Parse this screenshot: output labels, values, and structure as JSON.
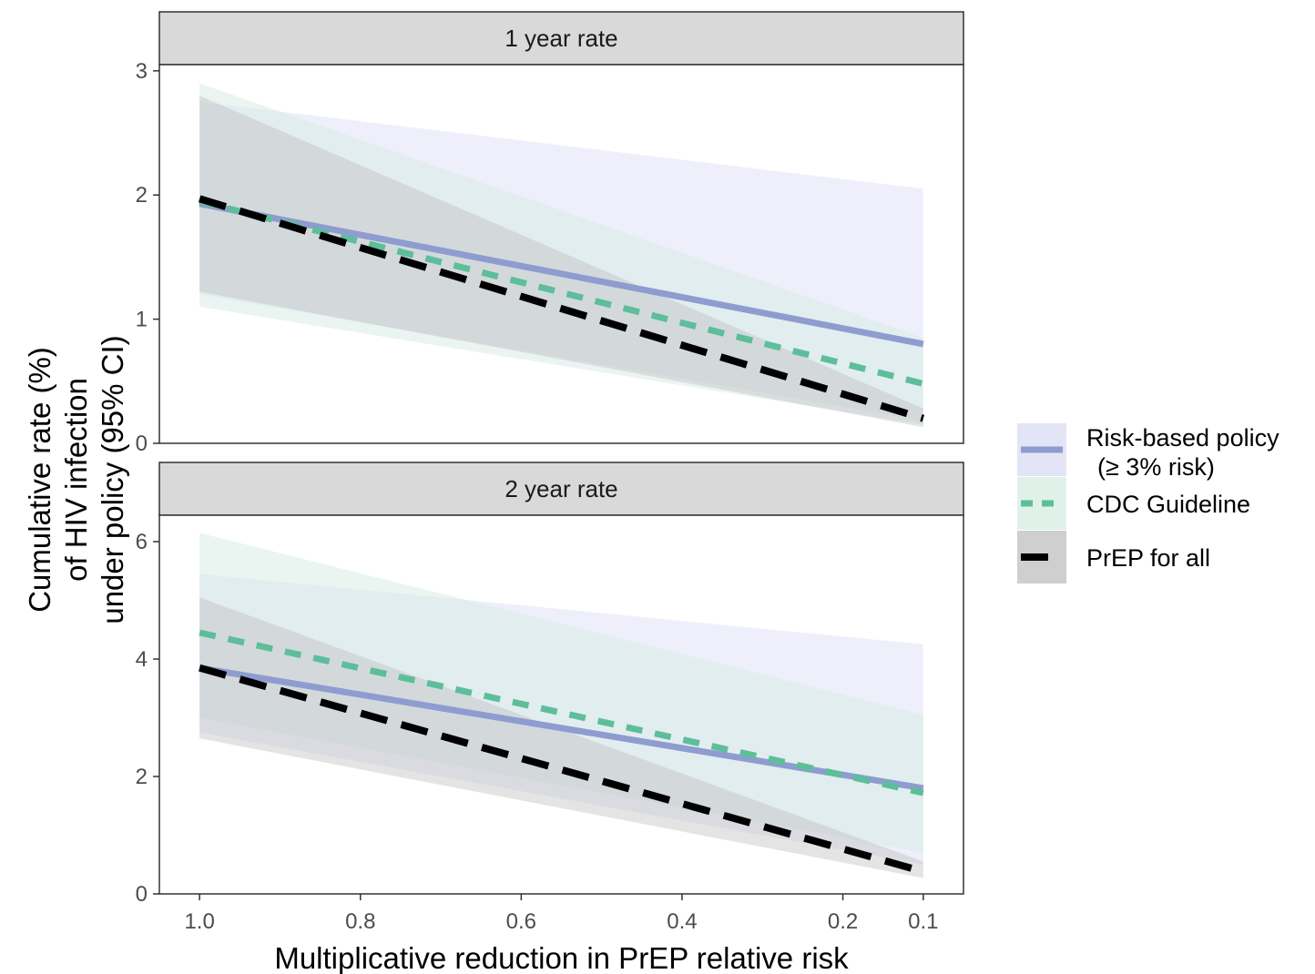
{
  "chart_data": {
    "type": "line",
    "xlabel": "Multiplicative reduction in PrEP relative risk",
    "ylabel_lines": [
      "Cumulative rate (%)",
      "of HIV infection",
      "under policy (95% CI)"
    ],
    "x_ticks": [
      1.0,
      0.8,
      0.6,
      0.4,
      0.2,
      0.1
    ],
    "x_tick_labels": [
      "1.0",
      "0.8",
      "0.6",
      "0.4",
      "0.2",
      "0.1"
    ],
    "x_domain": [
      1.05,
      0.05
    ],
    "x_scale": "reversed-linear",
    "grid": false,
    "legend_position": "right",
    "legend": [
      {
        "key": "risk",
        "label_lines": [
          "Risk-based policy",
          "(≥ 3% risk)"
        ],
        "color": "#8E9CCF",
        "fill": "#D9DCF3",
        "style": "solid"
      },
      {
        "key": "cdc",
        "label_lines": [
          "CDC Guideline"
        ],
        "color": "#5DBE9A",
        "fill": "#D5ECE3",
        "style": "dashed"
      },
      {
        "key": "all",
        "label_lines": [
          "PrEP for all"
        ],
        "color": "#000000",
        "fill": "#BFBFBF",
        "style": "dashed"
      }
    ],
    "panels": [
      {
        "strip": "1 year rate",
        "ylim": [
          0,
          3.05
        ],
        "y_ticks": [
          0,
          1,
          2,
          3
        ],
        "y_tick_labels": [
          "0",
          "1",
          "2",
          "3"
        ],
        "series": [
          {
            "key": "risk",
            "x": [
              1.0,
              0.1
            ],
            "y": [
              1.93,
              0.8
            ],
            "lower": [
              1.2,
              0.18
            ],
            "upper": [
              2.75,
              2.05
            ]
          },
          {
            "key": "cdc",
            "x": [
              1.0,
              0.1
            ],
            "y": [
              1.95,
              0.48
            ],
            "lower": [
              1.1,
              0.15
            ],
            "upper": [
              2.9,
              0.85
            ]
          },
          {
            "key": "all",
            "x": [
              1.0,
              0.1
            ],
            "y": [
              1.97,
              0.2
            ],
            "lower": [
              1.22,
              0.13
            ],
            "upper": [
              2.8,
              0.28
            ]
          }
        ]
      },
      {
        "strip": "2 year rate",
        "ylim": [
          0,
          6.45
        ],
        "y_ticks": [
          0,
          2,
          4,
          6
        ],
        "y_tick_labels": [
          "0",
          "2",
          "4",
          "6"
        ],
        "series": [
          {
            "key": "risk",
            "x": [
              1.0,
              0.1
            ],
            "y": [
              3.85,
              1.8
            ],
            "lower": [
              2.75,
              0.5
            ],
            "upper": [
              5.45,
              4.25
            ]
          },
          {
            "key": "cdc",
            "x": [
              1.0,
              0.1
            ],
            "y": [
              4.45,
              1.72
            ],
            "lower": [
              3.0,
              0.7
            ],
            "upper": [
              6.15,
              3.05
            ]
          },
          {
            "key": "all",
            "x": [
              1.0,
              0.1
            ],
            "y": [
              3.85,
              0.38
            ],
            "lower": [
              2.65,
              0.27
            ],
            "upper": [
              5.05,
              0.55
            ]
          }
        ]
      }
    ]
  }
}
